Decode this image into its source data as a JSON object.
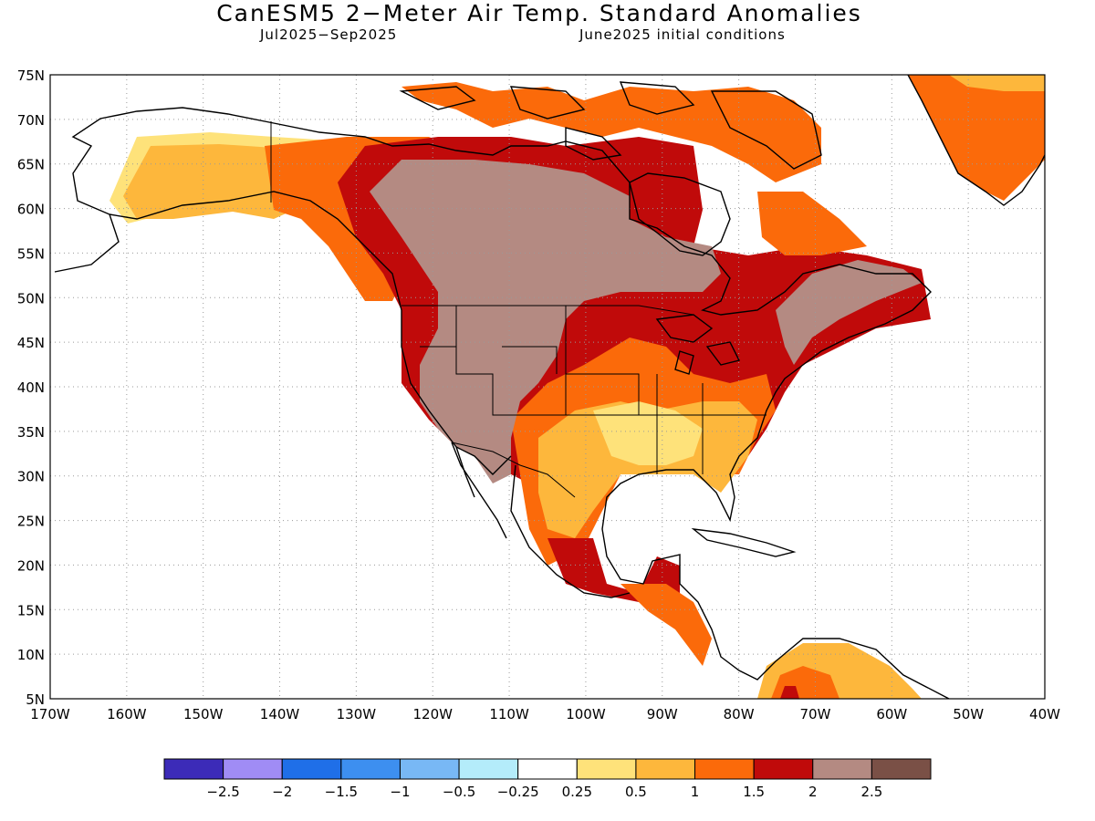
{
  "title": "CanESM5 2−Meter Air Temp. Standard Anomalies",
  "subtitle_left": "Jul2025−Sep2025",
  "subtitle_right": "June2025 initial conditions",
  "map": {
    "lat_range": [
      5,
      75
    ],
    "lon_range": [
      -170,
      -40
    ],
    "lat_ticks": [
      "75N",
      "70N",
      "65N",
      "60N",
      "55N",
      "50N",
      "45N",
      "40N",
      "35N",
      "30N",
      "25N",
      "20N",
      "15N",
      "10N",
      "5N"
    ],
    "lon_ticks": [
      "170W",
      "160W",
      "150W",
      "140W",
      "130W",
      "120W",
      "110W",
      "100W",
      "90W",
      "80W",
      "70W",
      "60W",
      "50W",
      "40W"
    ],
    "grid": "dotted"
  },
  "colorbar": {
    "colors": [
      "#3c2bb8",
      "#a08cf5",
      "#1f6fe8",
      "#3d8ff0",
      "#78b8f5",
      "#b4ecfa",
      "#ffffff",
      "#fee27a",
      "#fdb73c",
      "#fb6a0a",
      "#c00a0a",
      "#b48a82",
      "#7a5046"
    ],
    "labels": [
      "−2.5",
      "−2",
      "−1.5",
      "−1",
      "−0.5",
      "−0.25",
      "0.25",
      "0.5",
      "1",
      "1.5",
      "2",
      "2.5"
    ]
  },
  "icons": {
    "land": "north-america-outline",
    "ocean": "blank"
  }
}
